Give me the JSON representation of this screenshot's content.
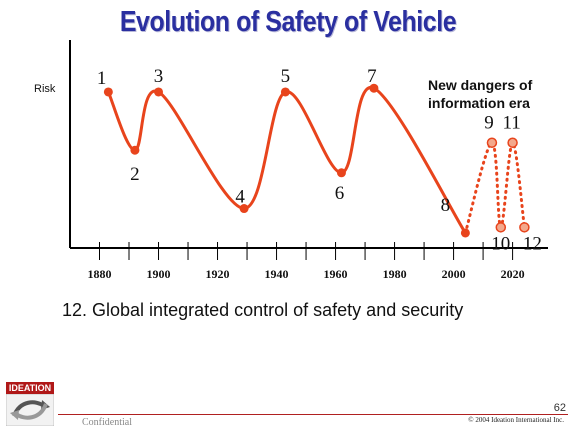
{
  "slide": {
    "title": "Evolution of Safety of Vehicle",
    "caption": "12. Global integrated control of safety and security",
    "confidential": "Confidential",
    "copyright": "© 2004 Ideation International Inc.",
    "page_number": "62",
    "logo_text": "IDEATION"
  },
  "chart_data": {
    "type": "line",
    "ylabel": "Risk",
    "xlim": [
      1870,
      2032
    ],
    "ylim": [
      0,
      10
    ],
    "x_ticks": [
      1880,
      1900,
      1920,
      1940,
      1960,
      1980,
      2000,
      2020
    ],
    "annotation": "New dangers of information era",
    "colors": {
      "curve": "#e8441c",
      "marker": "#e8441c",
      "axis": "#000000"
    },
    "series": [
      {
        "style": "solid",
        "points": [
          {
            "label": "1",
            "x": 1883,
            "y": 8.3
          },
          {
            "label": "2",
            "x": 1892,
            "y": 5.2
          },
          {
            "label": "3",
            "x": 1900,
            "y": 8.3
          },
          {
            "label": "4",
            "x": 1929,
            "y": 2.1
          },
          {
            "label": "5",
            "x": 1943,
            "y": 8.3
          },
          {
            "label": "6",
            "x": 1962,
            "y": 4.0
          },
          {
            "label": "7",
            "x": 1973,
            "y": 8.5
          },
          {
            "label": "8",
            "x": 2004,
            "y": 0.8
          }
        ]
      },
      {
        "style": "dotted",
        "points": [
          {
            "label": "8",
            "x": 2004,
            "y": 0.8
          },
          {
            "label": "9",
            "x": 2013,
            "y": 5.6
          },
          {
            "label": "10",
            "x": 2016,
            "y": 1.1
          },
          {
            "label": "11",
            "x": 2020,
            "y": 5.6
          },
          {
            "label": "12",
            "x": 2024,
            "y": 1.1
          }
        ]
      }
    ]
  }
}
